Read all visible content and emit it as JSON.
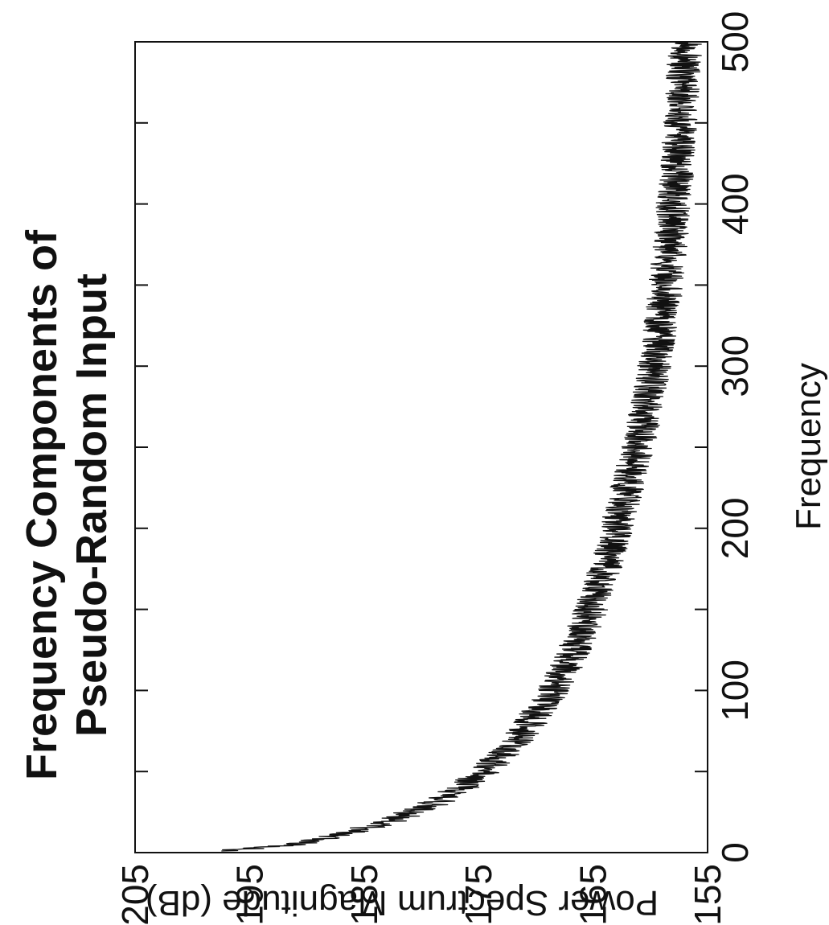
{
  "chart_data": {
    "type": "line",
    "title": "Frequency Components of",
    "subtitle": "Pseudo-Random Input",
    "xlabel": "Frequency",
    "ylabel": "Power Spectrum Magnitude (dB)",
    "xlim": [
      0,
      500
    ],
    "ylim": [
      155,
      205
    ],
    "x_ticks": [
      0,
      100,
      200,
      300,
      400,
      500
    ],
    "y_ticks": [
      155,
      165,
      175,
      185,
      195,
      205
    ],
    "x_ticks_minor": [
      50,
      150,
      250,
      350,
      450
    ],
    "orientation": "rotated 90 degrees counter-clockwise",
    "grid": false,
    "legend": "none",
    "series": [
      {
        "color": "#111111",
        "noise_band_db": 1.5,
        "x": [
          1,
          5,
          10,
          20,
          30,
          40,
          50,
          60,
          70,
          80,
          90,
          100,
          120,
          140,
          160,
          180,
          200,
          220,
          240,
          260,
          280,
          300,
          320,
          340,
          360,
          380,
          400,
          420,
          440,
          460,
          480,
          500
        ],
        "values": [
          197,
          191,
          187.5,
          182.5,
          179,
          176.5,
          174.5,
          173,
          171.5,
          170.5,
          169.5,
          168.5,
          167,
          165.7,
          164.7,
          163.8,
          163,
          162.2,
          161.5,
          160.8,
          160.2,
          159.7,
          159.2,
          158.8,
          158.5,
          158.2,
          158,
          157.7,
          157.5,
          157.3,
          157.1,
          157
        ]
      }
    ]
  }
}
